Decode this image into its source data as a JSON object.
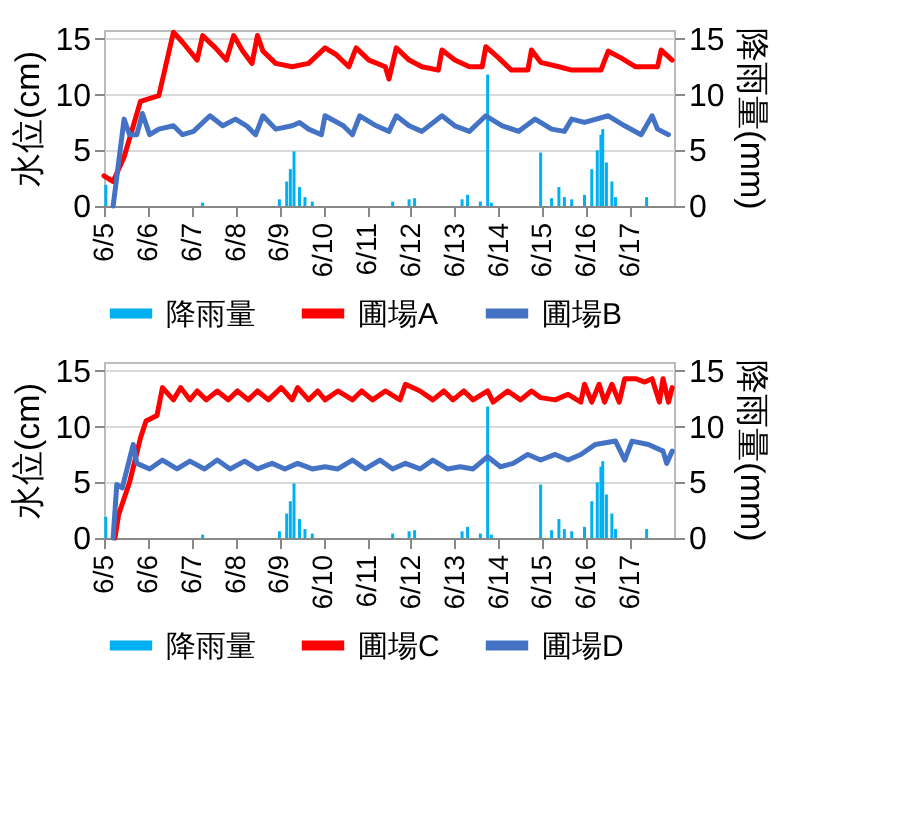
{
  "chart_data": [
    {
      "type": "line",
      "ylabel": "水位(cm)",
      "y2label": "降雨量(mm)",
      "xlim": [
        "--06-05",
        "--06-18"
      ],
      "xticks": [
        {
          "value": "--06-05",
          "label": "6/5"
        },
        {
          "value": "--06-06",
          "label": "6/6"
        },
        {
          "value": "--06-07",
          "label": "6/7"
        },
        {
          "value": "--06-08",
          "label": "6/8"
        },
        {
          "value": "--06-09",
          "label": "6/9"
        },
        {
          "value": "--06-10",
          "label": "6/10"
        },
        {
          "value": "--06-11",
          "label": "6/11"
        },
        {
          "value": "--06-12",
          "label": "6/12"
        },
        {
          "value": "--06-13",
          "label": "6/13"
        },
        {
          "value": "--06-14",
          "label": "6/14"
        },
        {
          "value": "--06-15",
          "label": "6/15"
        },
        {
          "value": "--06-16",
          "label": "6/16"
        },
        {
          "value": "--06-17",
          "label": "6/17"
        }
      ],
      "ylim": [
        0,
        15.8
      ],
      "yticks": [
        0,
        5,
        10,
        15
      ],
      "y2lim": [
        0,
        15.8
      ],
      "y2ticks": [
        0,
        5,
        10,
        15
      ],
      "grid": "y",
      "legend": "bottom",
      "series": [
        {
          "name": "降雨量",
          "type": "bar",
          "axis": "y2",
          "color": "#00b0f0",
          "x": [
            "--06-05T01:00",
            "--06-07T06:00",
            "--06-09T00:00",
            "--06-09T04:00",
            "--06-09T06:00",
            "--06-09T08:00",
            "--06-09T11:00",
            "--06-09T14:00",
            "--06-09T18:00",
            "--06-11T14:00",
            "--06-11T23:00",
            "--06-12T02:00",
            "--06-13T04:00",
            "--06-13T07:00",
            "--06-13T14:00",
            "--06-13T18:00",
            "--06-13T20:00",
            "--06-14T23:00",
            "--06-15T05:00",
            "--06-15T09:00",
            "--06-15T12:00",
            "--06-15T16:00",
            "--06-15T23:00",
            "--06-16T03:00",
            "--06-16T06:00",
            "--06-16T08:00",
            "--06-16T09:00",
            "--06-16T11:00",
            "--06-16T14:00",
            "--06-16T16:00",
            "--06-17T09:00"
          ],
          "values": [
            1.9,
            0.3,
            0.6,
            2.2,
            3.3,
            4.9,
            1.7,
            0.8,
            0.4,
            0.4,
            0.6,
            0.7,
            0.6,
            1.0,
            0.4,
            11.8,
            0.3,
            4.8,
            0.7,
            1.7,
            0.8,
            0.6,
            1.0,
            3.3,
            5.0,
            6.4,
            6.9,
            3.9,
            2.2,
            0.8,
            0.8
          ]
        },
        {
          "name": "圃場A",
          "color": "#ff0000",
          "x": [
            "--06-05T00:00",
            "--06-05T05:00",
            "--06-05T11:00",
            "--06-05T20:00",
            "--06-06T06:00",
            "--06-06T14:00",
            "--06-06T19:00",
            "--06-07T03:00",
            "--06-07T06:00",
            "--06-07T13:00",
            "--06-07T19:00",
            "--06-07T23:00",
            "--06-08T04:00",
            "--06-08T09:00",
            "--06-08T12:00",
            "--06-08T15:00",
            "--06-08T22:00",
            "--06-09T07:00",
            "--06-09T16:00",
            "--06-10T01:00",
            "--06-10T07:00",
            "--06-10T14:00",
            "--06-10T18:00",
            "--06-11T01:00",
            "--06-11T10:00",
            "--06-11T12:00",
            "--06-11T16:00",
            "--06-11T23:00",
            "--06-12T06:00",
            "--06-12T15:00",
            "--06-12T17:00",
            "--06-13T00:00",
            "--06-13T08:00",
            "--06-13T15:00",
            "--06-13T17:00",
            "--06-14T00:00",
            "--06-14T07:00",
            "--06-14T16:00",
            "--06-14T18:00",
            "--06-14T23:00",
            "--06-15T09:00",
            "--06-15T16:00",
            "--06-16T08:00",
            "--06-16T12:00",
            "--06-16T19:00",
            "--06-17T03:00",
            "--06-17T15:00",
            "--06-17T17:00",
            "--06-17T23:00"
          ],
          "values": [
            2.7,
            2.2,
            4.4,
            9.4,
            9.9,
            15.6,
            14.7,
            13.1,
            15.3,
            14.2,
            13.1,
            15.3,
            13.9,
            12.8,
            15.3,
            13.9,
            12.8,
            12.5,
            12.8,
            14.2,
            13.6,
            12.5,
            14.2,
            13.1,
            12.5,
            11.4,
            14.2,
            13.1,
            12.5,
            12.2,
            14.0,
            13.1,
            12.5,
            12.5,
            14.3,
            13.3,
            12.2,
            12.2,
            14.0,
            12.9,
            12.5,
            12.2,
            12.2,
            13.9,
            13.3,
            12.5,
            12.5,
            14.0,
            13.1
          ]
        },
        {
          "name": "圃場B",
          "color": "#4472c4",
          "x": [
            "--06-05T05:00",
            "--06-05T11:00",
            "--06-05T14:00",
            "--06-05T18:00",
            "--06-05T21:00",
            "--06-06T01:00",
            "--06-06T06:00",
            "--06-06T14:00",
            "--06-06T19:00",
            "--06-07T01:00",
            "--06-07T10:00",
            "--06-07T17:00",
            "--06-08T00:00",
            "--06-08T06:00",
            "--06-08T11:00",
            "--06-08T15:00",
            "--06-08T22:00",
            "--06-09T07:00",
            "--06-09T11:00",
            "--06-09T16:00",
            "--06-09T23:00",
            "--06-10T01:00",
            "--06-10T11:00",
            "--06-10T16:00",
            "--06-10T20:00",
            "--06-11T05:00",
            "--06-11T12:00",
            "--06-11T16:00",
            "--06-11T23:00",
            "--06-12T06:00",
            "--06-12T17:00",
            "--06-13T00:00",
            "--06-13T08:00",
            "--06-13T17:00",
            "--06-14T02:00",
            "--06-14T11:00",
            "--06-14T20:00",
            "--06-15T05:00",
            "--06-15T12:00",
            "--06-15T16:00",
            "--06-15T23:00",
            "--06-16T12:00",
            "--06-16T21:00",
            "--06-17T06:00",
            "--06-17T12:00",
            "--06-17T15:00",
            "--06-17T21:00"
          ],
          "values": [
            0,
            7.8,
            6.4,
            6.4,
            8.3,
            6.4,
            6.9,
            7.2,
            6.4,
            6.7,
            8.1,
            7.2,
            7.8,
            7.2,
            6.4,
            8.1,
            6.9,
            7.2,
            7.5,
            6.9,
            6.4,
            8.1,
            7.2,
            6.4,
            8.1,
            7.2,
            6.7,
            8.1,
            7.2,
            6.7,
            8.1,
            7.2,
            6.7,
            8.1,
            7.2,
            6.7,
            7.8,
            6.9,
            6.7,
            7.8,
            7.5,
            8.1,
            7.2,
            6.4,
            8.1,
            6.9,
            6.4
          ]
        }
      ]
    },
    {
      "type": "line",
      "ylabel": "水位(cm)",
      "y2label": "降雨量(mm)",
      "xlim": [
        "--06-05",
        "--06-18"
      ],
      "xticks": [
        {
          "value": "--06-05",
          "label": "6/5"
        },
        {
          "value": "--06-06",
          "label": "6/6"
        },
        {
          "value": "--06-07",
          "label": "6/7"
        },
        {
          "value": "--06-08",
          "label": "6/8"
        },
        {
          "value": "--06-09",
          "label": "6/9"
        },
        {
          "value": "--06-10",
          "label": "6/10"
        },
        {
          "value": "--06-11",
          "label": "6/11"
        },
        {
          "value": "--06-12",
          "label": "6/12"
        },
        {
          "value": "--06-13",
          "label": "6/13"
        },
        {
          "value": "--06-14",
          "label": "6/14"
        },
        {
          "value": "--06-15",
          "label": "6/15"
        },
        {
          "value": "--06-16",
          "label": "6/16"
        },
        {
          "value": "--06-17",
          "label": "6/17"
        }
      ],
      "ylim": [
        0,
        15.8
      ],
      "yticks": [
        0,
        5,
        10,
        15
      ],
      "y2lim": [
        0,
        15.8
      ],
      "y2ticks": [
        0,
        5,
        10,
        15
      ],
      "grid": "y",
      "legend": "bottom",
      "series": [
        {
          "name": "降雨量",
          "type": "bar",
          "axis": "y2",
          "color": "#00b0f0",
          "x": [
            "--06-05T01:00",
            "--06-07T06:00",
            "--06-09T00:00",
            "--06-09T04:00",
            "--06-09T06:00",
            "--06-09T08:00",
            "--06-09T11:00",
            "--06-09T14:00",
            "--06-09T18:00",
            "--06-11T14:00",
            "--06-11T23:00",
            "--06-12T02:00",
            "--06-13T04:00",
            "--06-13T07:00",
            "--06-13T14:00",
            "--06-13T18:00",
            "--06-13T20:00",
            "--06-14T23:00",
            "--06-15T05:00",
            "--06-15T09:00",
            "--06-15T12:00",
            "--06-15T16:00",
            "--06-15T23:00",
            "--06-16T03:00",
            "--06-16T06:00",
            "--06-16T08:00",
            "--06-16T09:00",
            "--06-16T11:00",
            "--06-16T14:00",
            "--06-16T16:00",
            "--06-17T09:00"
          ],
          "values": [
            1.9,
            0.3,
            0.6,
            2.2,
            3.3,
            4.9,
            1.7,
            0.8,
            0.4,
            0.4,
            0.6,
            0.7,
            0.6,
            1.0,
            0.4,
            11.8,
            0.3,
            4.8,
            0.7,
            1.7,
            0.8,
            0.6,
            1.0,
            3.3,
            5.0,
            6.4,
            6.9,
            3.9,
            2.2,
            0.8,
            0.8
          ]
        },
        {
          "name": "圃場C",
          "color": "#ff0000",
          "x": [
            "--06-05T06:00",
            "--06-05T08:00",
            "--06-05T14:00",
            "--06-05T20:00",
            "--06-05T23:00",
            "--06-06T05:00",
            "--06-06T08:00",
            "--06-06T14:00",
            "--06-06T18:00",
            "--06-06T23:00",
            "--06-07T03:00",
            "--06-07T08:00",
            "--06-07T14:00",
            "--06-07T20:00",
            "--06-08T01:00",
            "--06-08T07:00",
            "--06-08T12:00",
            "--06-08T18:00",
            "--06-09T01:00",
            "--06-09T07:00",
            "--06-09T10:00",
            "--06-09T16:00",
            "--06-09T21:00",
            "--06-10T01:00",
            "--06-10T08:00",
            "--06-10T16:00",
            "--06-10T21:00",
            "--06-11T03:00",
            "--06-11T10:00",
            "--06-11T18:00",
            "--06-11T21:00",
            "--06-12T05:00",
            "--06-12T12:00",
            "--06-12T18:00",
            "--06-12T23:00",
            "--06-13T05:00",
            "--06-13T10:00",
            "--06-13T18:00",
            "--06-13T21:00",
            "--06-14T05:00",
            "--06-14T12:00",
            "--06-14T18:00",
            "--06-14T23:00",
            "--06-15T07:00",
            "--06-15T14:00",
            "--06-15T21:00",
            "--06-15T23:00",
            "--06-16T03:00",
            "--06-16T07:00",
            "--06-16T10:00",
            "--06-16T14:00",
            "--06-16T18:00",
            "--06-16T21:00",
            "--06-17T03:00",
            "--06-17T08:00",
            "--06-17T12:00",
            "--06-17T16:00",
            "--06-17T18:00",
            "--06-17T21:00",
            "--06-17T23:00"
          ],
          "values": [
            0,
            2.1,
            5.0,
            9.0,
            10.5,
            11.0,
            13.5,
            12.4,
            13.5,
            12.4,
            13.2,
            12.4,
            13.2,
            12.4,
            13.2,
            12.4,
            13.2,
            12.4,
            13.5,
            12.4,
            13.5,
            12.4,
            13.2,
            12.4,
            13.2,
            12.4,
            13.2,
            12.4,
            13.2,
            12.4,
            13.8,
            13.2,
            12.4,
            13.2,
            12.4,
            13.2,
            12.4,
            13.2,
            12.2,
            13.2,
            12.4,
            13.2,
            12.6,
            12.4,
            12.9,
            12.2,
            13.8,
            12.2,
            13.8,
            12.2,
            13.8,
            12.2,
            14.3,
            14.3,
            14.0,
            14.3,
            12.2,
            14.3,
            12.2,
            13.5
          ]
        },
        {
          "name": "圃場D",
          "color": "#4472c4",
          "x": [
            "--06-05T05:00",
            "--06-05T07:00",
            "--06-05T10:00",
            "--06-05T16:00",
            "--06-05T18:00",
            "--06-06T01:00",
            "--06-06T08:00",
            "--06-06T16:00",
            "--06-06T23:00",
            "--06-07T07:00",
            "--06-07T14:00",
            "--06-07T21:00",
            "--06-08T05:00",
            "--06-08T12:00",
            "--06-08T20:00",
            "--06-09T03:00",
            "--06-09T10:00",
            "--06-09T18:00",
            "--06-10T01:00",
            "--06-10T08:00",
            "--06-10T16:00",
            "--06-10T23:00",
            "--06-11T07:00",
            "--06-11T14:00",
            "--06-11T21:00",
            "--06-12T05:00",
            "--06-12T12:00",
            "--06-12T20:00",
            "--06-13T03:00",
            "--06-13T10:00",
            "--06-13T18:00",
            "--06-14T01:00",
            "--06-14T08:00",
            "--06-14T16:00",
            "--06-14T23:00",
            "--06-15T07:00",
            "--06-15T14:00",
            "--06-15T21:00",
            "--06-16T05:00",
            "--06-16T16:00",
            "--06-16T21:00",
            "--06-17T01:00",
            "--06-17T10:00",
            "--06-17T18:00",
            "--06-17T20:00",
            "--06-17T23:00"
          ],
          "values": [
            0,
            4.8,
            4.5,
            8.4,
            6.7,
            6.2,
            7.0,
            6.2,
            6.9,
            6.2,
            7.0,
            6.2,
            6.9,
            6.2,
            6.7,
            6.2,
            6.7,
            6.2,
            6.4,
            6.2,
            7.0,
            6.2,
            7.0,
            6.2,
            6.7,
            6.2,
            7.0,
            6.2,
            6.4,
            6.2,
            7.3,
            6.4,
            6.7,
            7.5,
            7.0,
            7.5,
            7.0,
            7.5,
            8.4,
            8.7,
            7.0,
            8.7,
            8.4,
            7.8,
            6.7,
            7.8
          ]
        }
      ]
    }
  ]
}
